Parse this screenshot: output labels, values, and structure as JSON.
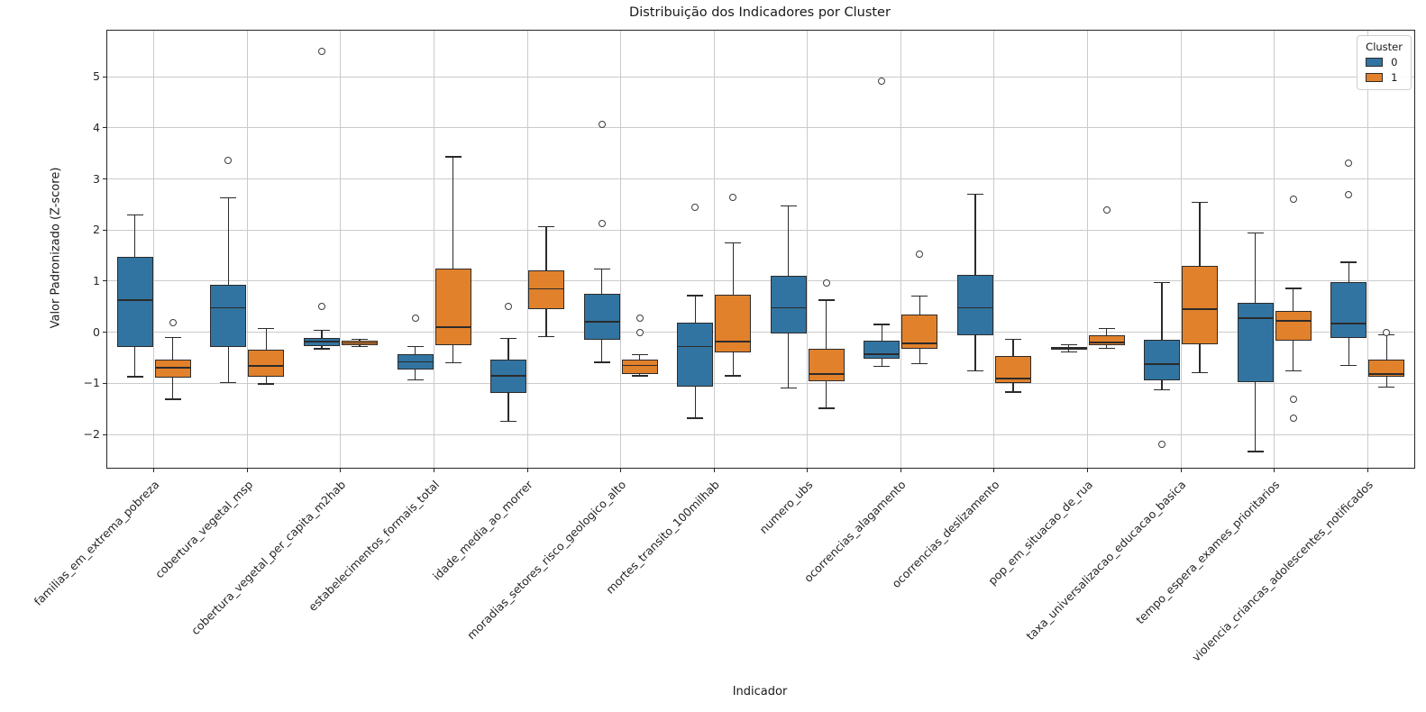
{
  "chart_data": {
    "type": "boxplot",
    "title": "Distribuição dos Indicadores por Cluster",
    "xlabel": "Indicador",
    "ylabel": "Valor Padronizado (Z-score)",
    "ylim": [
      -2.65,
      5.9
    ],
    "grid": true,
    "yticks": [
      {
        "v": 5,
        "label": "5"
      },
      {
        "v": 4,
        "label": "4"
      },
      {
        "v": 3,
        "label": "3"
      },
      {
        "v": 2,
        "label": "2"
      },
      {
        "v": 1,
        "label": "1"
      },
      {
        "v": 0,
        "label": "0"
      },
      {
        "v": -1,
        "label": "−1"
      },
      {
        "v": -2,
        "label": "−2"
      }
    ],
    "categories": [
      "familias_em_extrema_pobreza",
      "cobertura_vegetal_msp",
      "cobertura_vegetal_per_capita_m2hab",
      "estabelecimentos_formais_total",
      "idade_media_ao_morrer",
      "moradias_setores_risco_geologico_alto",
      "mortes_transito_100milhab",
      "numero_ubs",
      "ocorrencias_alagamento",
      "ocorrencias_deslizamento",
      "pop_em_situacao_de_rua",
      "taxa_universalizacao_educacao_basica",
      "tempo_espera_exames_prioritarios",
      "violencia_criancas_adolescentes_notificados"
    ],
    "legend": {
      "title": "Cluster",
      "position": "upper right",
      "entries": [
        {
          "label": "0",
          "color": "#3274a1"
        },
        {
          "label": "1",
          "color": "#e1812c"
        }
      ]
    },
    "series": [
      {
        "name": "0",
        "color": "#3274a1",
        "boxes": [
          {
            "whislo": -0.87,
            "q1": -0.28,
            "med": 0.63,
            "q3": 1.48,
            "whishi": 2.3,
            "fliers": []
          },
          {
            "whislo": -0.98,
            "q1": -0.28,
            "med": 0.48,
            "q3": 0.92,
            "whishi": 2.63,
            "fliers": [
              3.36
            ]
          },
          {
            "whislo": -0.32,
            "q1": -0.27,
            "med": -0.18,
            "q3": -0.11,
            "whishi": 0.04,
            "fliers": [
              5.5,
              0.5
            ]
          },
          {
            "whislo": -0.93,
            "q1": -0.72,
            "med": -0.58,
            "q3": -0.43,
            "whishi": -0.28,
            "fliers": [
              0.28
            ]
          },
          {
            "whislo": -1.74,
            "q1": -1.18,
            "med": -0.85,
            "q3": -0.53,
            "whishi": -0.12,
            "fliers": [
              0.5
            ]
          },
          {
            "whislo": -0.59,
            "q1": -0.15,
            "med": 0.2,
            "q3": 0.76,
            "whishi": 1.24,
            "fliers": [
              4.06,
              2.13
            ]
          },
          {
            "whislo": -1.68,
            "q1": -1.06,
            "med": -0.28,
            "q3": 0.19,
            "whishi": 0.72,
            "fliers": [
              2.45
            ]
          },
          {
            "whislo": -1.09,
            "q1": -0.02,
            "med": 0.48,
            "q3": 1.1,
            "whishi": 2.47,
            "fliers": []
          },
          {
            "whislo": -0.67,
            "q1": -0.52,
            "med": -0.43,
            "q3": -0.17,
            "whishi": 0.15,
            "fliers": [
              4.92
            ]
          },
          {
            "whislo": -0.76,
            "q1": -0.05,
            "med": 0.48,
            "q3": 1.12,
            "whishi": 2.7,
            "fliers": []
          },
          {
            "whislo": -0.39,
            "q1": -0.34,
            "med": -0.31,
            "q3": -0.28,
            "whishi": -0.24,
            "fliers": []
          },
          {
            "whislo": -1.12,
            "q1": -0.94,
            "med": -0.62,
            "q3": -0.15,
            "whishi": 0.97,
            "fliers": [
              -2.2
            ]
          },
          {
            "whislo": -2.33,
            "q1": -0.97,
            "med": 0.28,
            "q3": 0.57,
            "whishi": 1.94,
            "fliers": []
          },
          {
            "whislo": -0.65,
            "q1": -0.12,
            "med": 0.17,
            "q3": 0.99,
            "whishi": 1.37,
            "fliers": [
              3.3,
              2.7
            ]
          }
        ]
      },
      {
        "name": "1",
        "color": "#e1812c",
        "boxes": [
          {
            "whislo": -1.31,
            "q1": -0.89,
            "med": -0.69,
            "q3": -0.54,
            "whishi": -0.1,
            "fliers": [
              0.19
            ]
          },
          {
            "whislo": -1.01,
            "q1": -0.87,
            "med": -0.66,
            "q3": -0.34,
            "whishi": 0.07,
            "fliers": []
          },
          {
            "whislo": -0.28,
            "q1": -0.25,
            "med": -0.21,
            "q3": -0.17,
            "whishi": -0.14,
            "fliers": []
          },
          {
            "whislo": -0.6,
            "q1": -0.25,
            "med": 0.1,
            "q3": 1.25,
            "whishi": 3.43,
            "fliers": []
          },
          {
            "whislo": -0.09,
            "q1": 0.45,
            "med": 0.85,
            "q3": 1.21,
            "whishi": 2.07,
            "fliers": []
          },
          {
            "whislo": -0.85,
            "q1": -0.82,
            "med": -0.65,
            "q3": -0.53,
            "whishi": -0.44,
            "fliers": [
              0.28,
              0.0
            ]
          },
          {
            "whislo": -0.85,
            "q1": -0.4,
            "med": -0.18,
            "q3": 0.73,
            "whishi": 1.75,
            "fliers": [
              2.63
            ]
          },
          {
            "whislo": -1.49,
            "q1": -0.96,
            "med": -0.82,
            "q3": -0.32,
            "whishi": 0.63,
            "fliers": [
              0.97
            ]
          },
          {
            "whislo": -0.61,
            "q1": -0.32,
            "med": -0.22,
            "q3": 0.35,
            "whishi": 0.71,
            "fliers": [
              1.53
            ]
          },
          {
            "whislo": -1.17,
            "q1": -0.99,
            "med": -0.9,
            "q3": -0.46,
            "whishi": -0.14,
            "fliers": []
          },
          {
            "whislo": -0.31,
            "q1": -0.26,
            "med": -0.2,
            "q3": -0.06,
            "whishi": 0.07,
            "fliers": [
              2.4
            ]
          },
          {
            "whislo": -0.79,
            "q1": -0.23,
            "med": 0.45,
            "q3": 1.3,
            "whishi": 2.54,
            "fliers": []
          },
          {
            "whislo": -0.75,
            "q1": -0.16,
            "med": 0.22,
            "q3": 0.42,
            "whishi": 0.86,
            "fliers": [
              2.6,
              -1.31,
              -1.68
            ]
          },
          {
            "whislo": -1.07,
            "q1": -0.87,
            "med": -0.81,
            "q3": -0.54,
            "whishi": -0.05,
            "fliers": [
              -0.01
            ]
          }
        ]
      }
    ],
    "style": {
      "grid_color": "#cbcbcb",
      "spine_color": "#262626",
      "box_edge_color": "#2b2b2b",
      "flier_edge_color": "#3c3c3c"
    }
  }
}
